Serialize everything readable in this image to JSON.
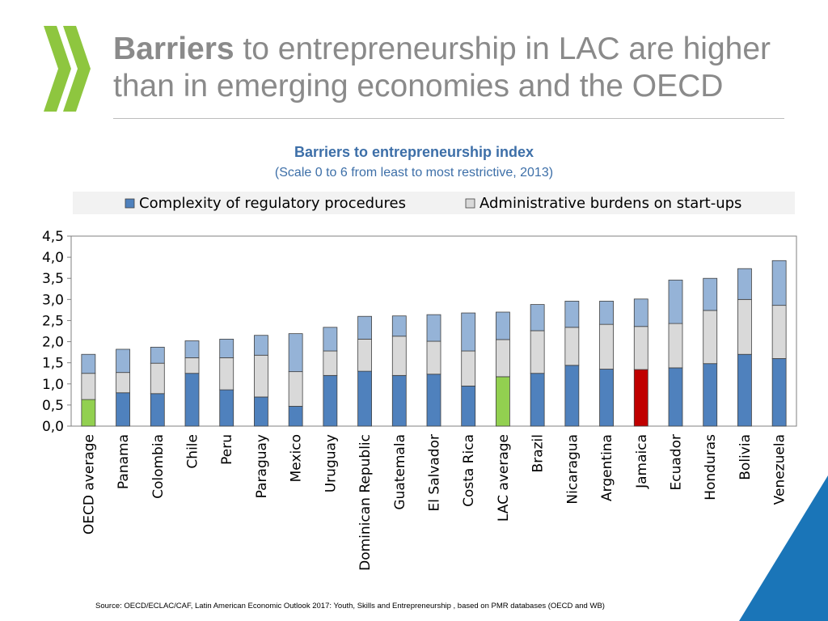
{
  "slide": {
    "title_bold": "Barriers",
    "title_rest": " to entrepreneurship in LAC are higher than in emerging economies and the OECD",
    "logo_icon": "oecd-chevrons-logo",
    "source": "Source: OECD/ECLAC/CAF, Latin American Economic Outlook 2017: Youth, Skills and Entrepreneurship , based on PMR databases (OECD and WB)"
  },
  "colors": {
    "complexity": "#4f81bd",
    "burdens": "#d9d9d9",
    "remainder": "#95b3d7",
    "oecd_highlight": "#92d050",
    "jamaica_highlight": "#c00000",
    "title_gray": "#8a8a8a",
    "subtitle_blue": "#3d6fa8",
    "logo_green": "#8ec63f",
    "corner_blue": "#1a75b8"
  },
  "chart_data": {
    "type": "bar",
    "stacked": true,
    "title": "Barriers to entrepreneurship index",
    "subtitle": "(Scale 0 to 6 from least to most restrictive, 2013)",
    "ylim": [
      0,
      4.5
    ],
    "yticks": [
      "0,0",
      "0,5",
      "1,0",
      "1,5",
      "2,0",
      "2,5",
      "3,0",
      "3,5",
      "4,0",
      "4,5"
    ],
    "grid": false,
    "legend_position": "top",
    "categories": [
      "OECD average",
      "Panama",
      "Colombia",
      "Chile",
      "Peru",
      "Paraguay",
      "Mexico",
      "Uruguay",
      "Dominican Republic",
      "Guatemala",
      "El Salvador",
      "Costa Rica",
      "LAC average",
      "Brazil",
      "Nicaragua",
      "Argentina",
      "Jamaica",
      "Ecuador",
      "Honduras",
      "Bolivia",
      "Venezuela"
    ],
    "highlight": {
      "OECD average": "#92d050",
      "LAC average": "#92d050",
      "Jamaica": "#c00000"
    },
    "series": [
      {
        "name": "Complexity of regulatory procedures",
        "values": [
          0.63,
          0.79,
          0.77,
          1.25,
          0.86,
          0.69,
          0.47,
          1.2,
          1.3,
          1.2,
          1.23,
          0.95,
          1.17,
          1.25,
          1.44,
          1.35,
          1.34,
          1.38,
          1.48,
          1.7,
          1.6
        ]
      },
      {
        "name": "Administrative burdens on start-ups",
        "values": [
          0.62,
          0.48,
          0.72,
          0.37,
          0.76,
          0.99,
          0.82,
          0.58,
          0.76,
          0.93,
          0.78,
          0.83,
          0.88,
          1.01,
          0.9,
          1.06,
          1.02,
          1.05,
          1.26,
          1.3,
          1.26
        ]
      },
      {
        "name": "",
        "values": [
          0.45,
          0.55,
          0.38,
          0.4,
          0.44,
          0.47,
          0.9,
          0.56,
          0.54,
          0.48,
          0.63,
          0.9,
          0.65,
          0.62,
          0.62,
          0.55,
          0.65,
          1.03,
          0.76,
          0.73,
          1.06
        ]
      }
    ]
  }
}
